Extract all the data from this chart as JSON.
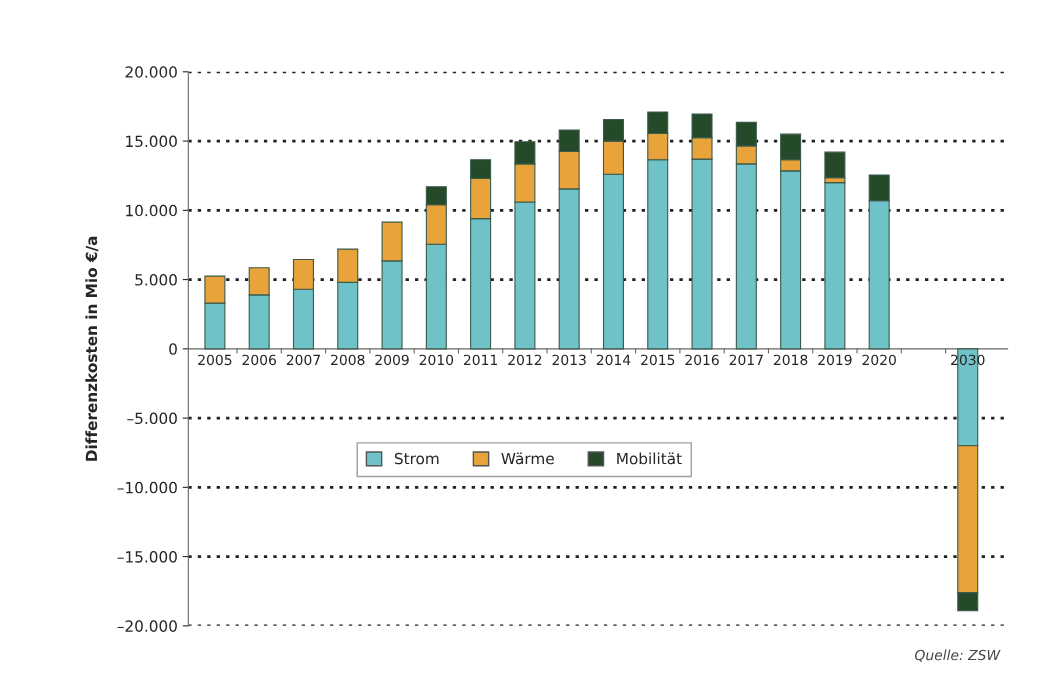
{
  "chart_data": {
    "type": "bar",
    "stacked": true,
    "ylabel": "Differenzkosten in Mio €/a",
    "categories": [
      "2005",
      "2006",
      "2007",
      "2008",
      "2009",
      "2010",
      "2011",
      "2012",
      "2013",
      "2014",
      "2015",
      "2016",
      "2017",
      "2018",
      "2019",
      "2020",
      null,
      "2030"
    ],
    "series": [
      {
        "name": "Strom",
        "color": "#6fc3c8",
        "values": [
          3300,
          3900,
          4300,
          4800,
          6350,
          7550,
          9400,
          10600,
          11550,
          12600,
          13650,
          13700,
          13350,
          12850,
          12000,
          10700,
          null,
          -7000
        ]
      },
      {
        "name": "Wärme",
        "color": "#e8a33a",
        "values": [
          1950,
          1950,
          2150,
          2400,
          2800,
          2850,
          2900,
          2750,
          2700,
          2400,
          1900,
          1550,
          1300,
          800,
          350,
          null,
          null,
          -10600
        ]
      },
      {
        "name": "Mobilität",
        "color": "#254a2a",
        "values": [
          null,
          null,
          null,
          null,
          null,
          1300,
          1350,
          1600,
          1550,
          1550,
          1550,
          1700,
          1700,
          1850,
          1850,
          1850,
          null,
          -1300
        ]
      }
    ],
    "ylim": [
      -20000,
      20000
    ],
    "yticks": [
      {
        "value": 20000,
        "label": "20.000"
      },
      {
        "value": 15000,
        "label": "15.000"
      },
      {
        "value": 10000,
        "label": "10.000"
      },
      {
        "value": 5000,
        "label": "5.000"
      },
      0,
      {
        "value": -5000,
        "label": "–5.000"
      },
      {
        "value": -10000,
        "label": "–10.000"
      },
      {
        "value": -15000,
        "label": "–15.000"
      },
      {
        "value": -20000,
        "label": "–20.000"
      }
    ],
    "grid": "y",
    "legend": "center",
    "annotations": [
      "Quelle: ZSW"
    ]
  }
}
